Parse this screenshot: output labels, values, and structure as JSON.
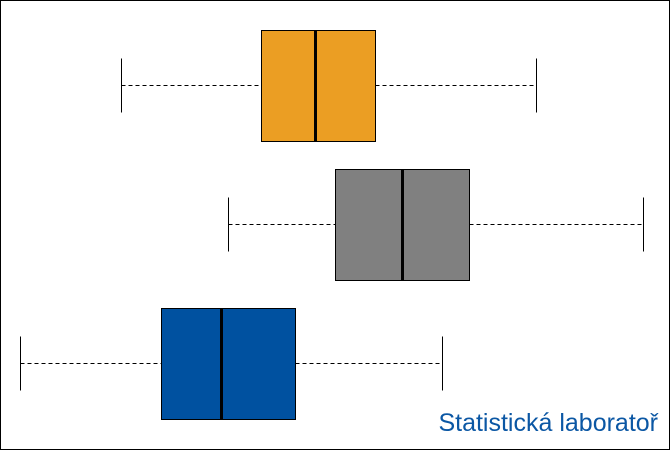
{
  "brand": {
    "text": "Statistická laboratoř",
    "color": "#0b57a4"
  },
  "boxplots": [
    {
      "name": "orange",
      "whisker_low": 0.18,
      "q1": 0.39,
      "median": 0.47,
      "q3": 0.56,
      "whisker_high": 0.8,
      "fill": "#eb9e23"
    },
    {
      "name": "gray",
      "whisker_low": 0.34,
      "q1": 0.5,
      "median": 0.6,
      "q3": 0.7,
      "whisker_high": 0.96,
      "fill": "#808080"
    },
    {
      "name": "blue",
      "whisker_low": 0.03,
      "q1": 0.24,
      "median": 0.33,
      "q3": 0.44,
      "whisker_high": 0.66,
      "fill": "#0051a0"
    }
  ],
  "border_color": "#000000"
}
